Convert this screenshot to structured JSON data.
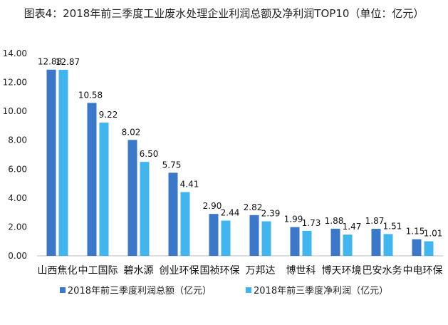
{
  "chart_data": {
    "type": "bar",
    "title": "图表4：2018年前三季度工业废水处理企业利润总额及净利润TOP10（单位：亿元）",
    "categories": [
      "山西焦化",
      "中工国际",
      "碧水源",
      "创业环保",
      "国祯环保",
      "万邦达",
      "博世科",
      "博天环境",
      "巴安水务",
      "中电环保"
    ],
    "series": [
      {
        "name": "2018年前三季度利润总额（亿元）",
        "color": "#3b78c9",
        "values": [
          12.88,
          10.58,
          8.02,
          5.75,
          2.9,
          2.82,
          1.99,
          1.88,
          1.87,
          1.15
        ]
      },
      {
        "name": "2018年前三季度净利润（亿元）",
        "color": "#41b6ee",
        "values": [
          12.87,
          9.22,
          6.5,
          4.41,
          2.44,
          2.39,
          1.73,
          1.47,
          1.51,
          1.01
        ]
      }
    ],
    "xlabel": "",
    "ylabel": "",
    "ylim": [
      0,
      14
    ],
    "yticks": [
      "0.00",
      "2.00",
      "4.00",
      "6.00",
      "8.00",
      "10.00",
      "12.00",
      "14.00"
    ],
    "grid": false,
    "legend_position": "bottom"
  }
}
